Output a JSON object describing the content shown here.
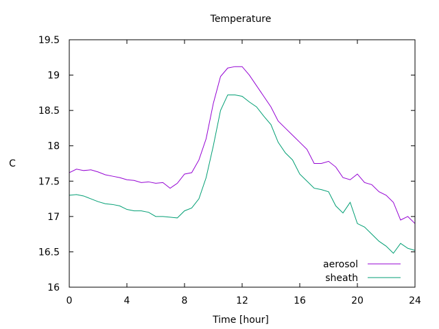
{
  "chart_data": {
    "type": "line",
    "title": "Temperature",
    "xlabel": "Time [hour]",
    "ylabel": "C",
    "xlim": [
      0,
      24
    ],
    "ylim": [
      16,
      19.5
    ],
    "xticks": [
      0,
      4,
      8,
      12,
      16,
      20,
      24
    ],
    "yticks": [
      16,
      16.5,
      17,
      17.5,
      18,
      18.5,
      19,
      19.5
    ],
    "ytick_labels": [
      "16",
      "16.5",
      "17",
      "17.5",
      "18",
      "18.5",
      "19",
      "19.5"
    ],
    "grid": false,
    "legend_position": "bottom-right",
    "series": [
      {
        "name": "aerosol",
        "color": "#9400d3",
        "x": [
          0,
          0.5,
          1,
          1.5,
          2,
          2.5,
          3,
          3.5,
          4,
          4.5,
          5,
          5.5,
          6,
          6.5,
          7,
          7.5,
          8,
          8.5,
          9,
          9.5,
          10,
          10.5,
          11,
          11.5,
          12,
          12.5,
          13,
          13.5,
          14,
          14.5,
          15,
          15.5,
          16,
          16.5,
          17,
          17.5,
          18,
          18.5,
          19,
          19.5,
          20,
          20.5,
          21,
          21.5,
          22,
          22.5,
          23,
          23.5,
          24
        ],
        "y": [
          17.62,
          17.67,
          17.65,
          17.66,
          17.63,
          17.59,
          17.57,
          17.55,
          17.52,
          17.51,
          17.48,
          17.49,
          17.47,
          17.48,
          17.4,
          17.47,
          17.6,
          17.62,
          17.8,
          18.1,
          18.6,
          18.98,
          19.1,
          19.12,
          19.12,
          19.0,
          18.85,
          18.7,
          18.55,
          18.35,
          18.25,
          18.15,
          18.05,
          17.95,
          17.75,
          17.75,
          17.78,
          17.7,
          17.55,
          17.52,
          17.6,
          17.48,
          17.45,
          17.35,
          17.3,
          17.2,
          16.95,
          17.0,
          16.9
        ]
      },
      {
        "name": "sheath",
        "color": "#009e73",
        "x": [
          0,
          0.5,
          1,
          1.5,
          2,
          2.5,
          3,
          3.5,
          4,
          4.5,
          5,
          5.5,
          6,
          6.5,
          7,
          7.5,
          8,
          8.5,
          9,
          9.5,
          10,
          10.5,
          11,
          11.5,
          12,
          12.5,
          13,
          13.5,
          14,
          14.5,
          15,
          15.5,
          16,
          16.5,
          17,
          17.5,
          18,
          18.5,
          19,
          19.5,
          20,
          20.5,
          21,
          21.5,
          22,
          22.5,
          23,
          23.5,
          24
        ],
        "y": [
          17.3,
          17.31,
          17.29,
          17.25,
          17.21,
          17.18,
          17.17,
          17.15,
          17.1,
          17.08,
          17.08,
          17.06,
          17.0,
          17.0,
          16.99,
          16.98,
          17.08,
          17.12,
          17.25,
          17.55,
          18.0,
          18.5,
          18.72,
          18.72,
          18.7,
          18.62,
          18.55,
          18.42,
          18.3,
          18.05,
          17.9,
          17.8,
          17.6,
          17.5,
          17.4,
          17.38,
          17.35,
          17.15,
          17.05,
          17.2,
          16.9,
          16.85,
          16.75,
          16.65,
          16.58,
          16.48,
          16.62,
          16.55,
          16.52
        ]
      }
    ]
  }
}
